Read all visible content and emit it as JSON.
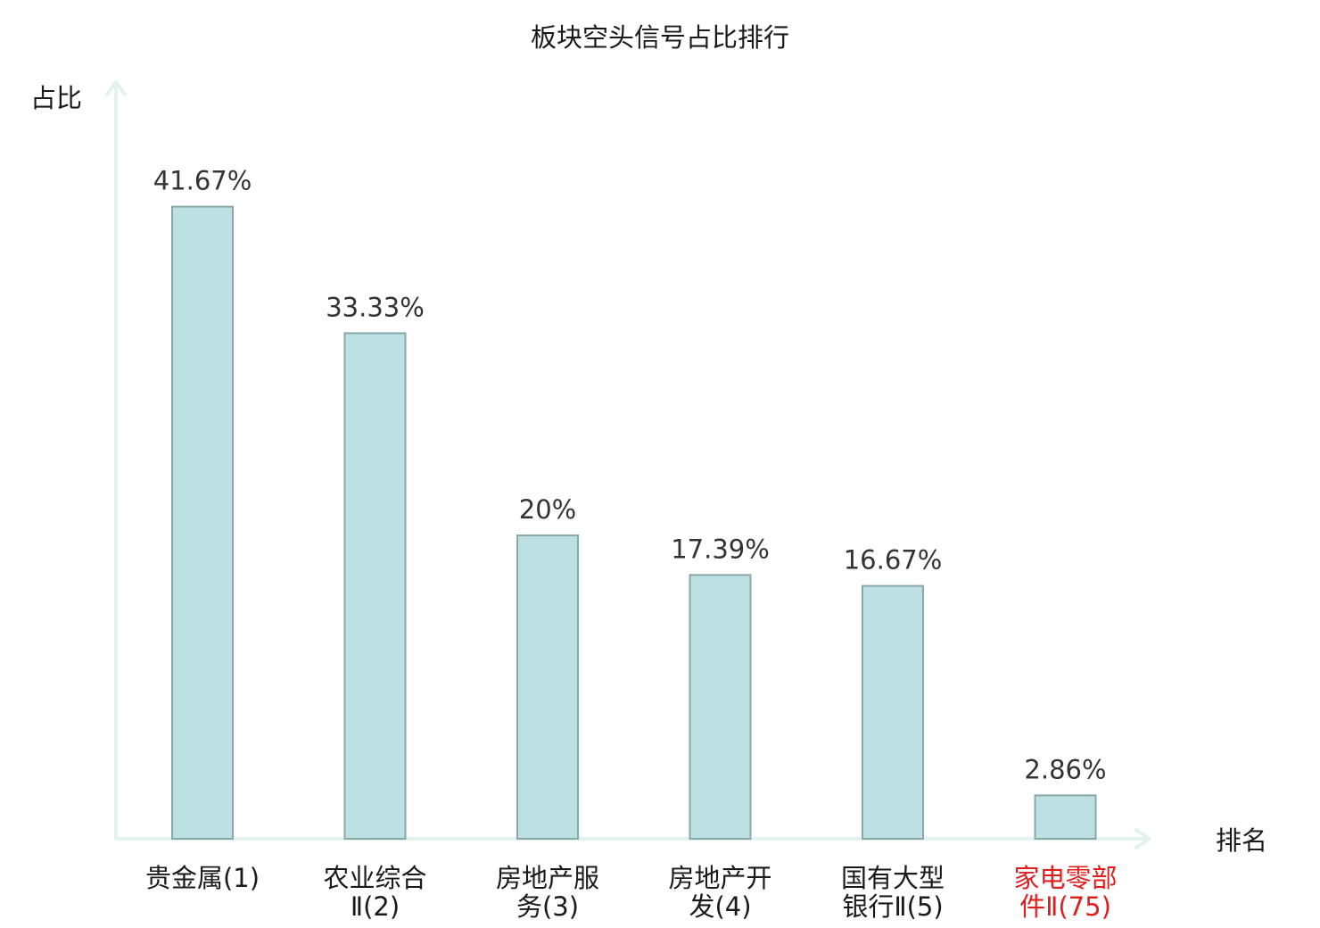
{
  "chart_data": {
    "type": "bar",
    "title": "板块空头信号占比排行",
    "ylabel": "占比",
    "xlabel": "排名",
    "categories": [
      [
        "贵金属(1)"
      ],
      [
        "农业综合",
        "Ⅱ(2)"
      ],
      [
        "房地产服",
        "务(3)"
      ],
      [
        "房地产开",
        "发(4)"
      ],
      [
        "国有大型",
        "银行Ⅱ(5)"
      ],
      [
        "家电零部",
        "件Ⅱ(75)"
      ]
    ],
    "values": [
      41.67,
      33.33,
      20,
      17.39,
      16.67,
      2.86
    ],
    "value_labels": [
      "41.67%",
      "33.33%",
      "20%",
      "17.39%",
      "16.67%",
      "2.86%"
    ],
    "highlight_index": 5,
    "highlight_color": "#e01e1e",
    "bar_color": "#bde0e3",
    "bar_edge_color": "#8aa7a9",
    "axis_color": "#e2f2ef",
    "ylim": [
      0,
      50
    ],
    "grid": false
  }
}
